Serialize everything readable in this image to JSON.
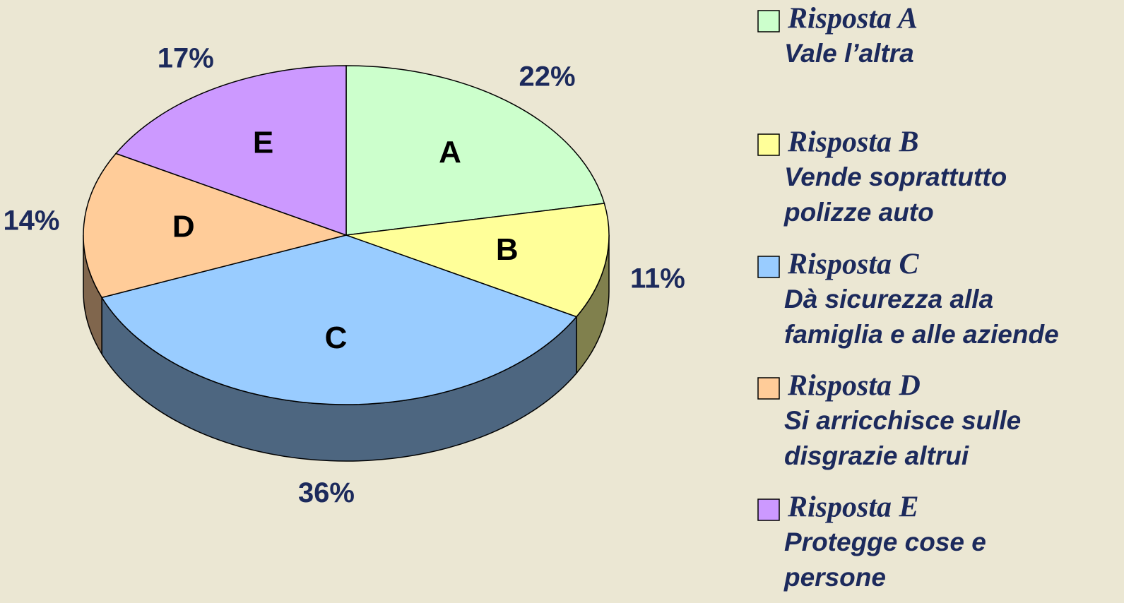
{
  "chart_data": {
    "type": "pie",
    "categories": [
      "A",
      "B",
      "C",
      "D",
      "E"
    ],
    "values": [
      22,
      11,
      36,
      14,
      17
    ],
    "value_labels": [
      "22%",
      "11%",
      "36%",
      "14%",
      "17%"
    ],
    "colors": [
      "#ccffcc",
      "#ffff99",
      "#99ccff",
      "#ffcc99",
      "#cc99ff"
    ],
    "legend_labels": [
      "Risposta A",
      "Risposta B",
      "Risposta C",
      "Risposta D",
      "Risposta E"
    ],
    "descriptions": [
      [
        "Vale l’altra"
      ],
      [
        "Vende soprattutto",
        "polizze auto"
      ],
      [
        "Dà sicurezza alla",
        "famiglia e alle aziende"
      ],
      [
        "Si arricchisce sulle",
        "disgrazie altrui"
      ],
      [
        "Protegge cose e",
        "persone"
      ]
    ]
  }
}
